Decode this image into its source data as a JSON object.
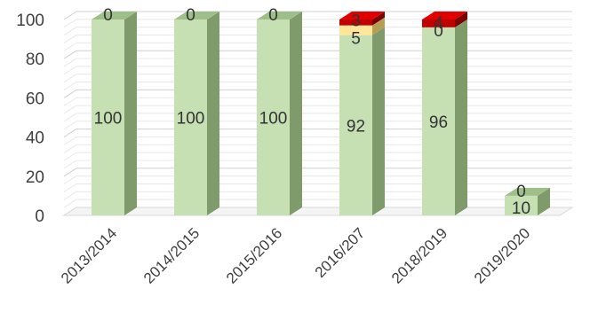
{
  "chart_data": {
    "type": "bar",
    "stacked": true,
    "three_d": true,
    "categories": [
      "2013/2014",
      "2014/2015",
      "2015/2016",
      "2016/207",
      "2018/2019",
      "2019/2020"
    ],
    "series": [
      {
        "values": [
          100,
          100,
          100,
          92,
          96,
          10
        ],
        "color": "#c6e0b4",
        "side_color": "#7f9b6b",
        "top_color": "#9fbf8a"
      },
      {
        "values": [
          0,
          0,
          0,
          5,
          0,
          0
        ],
        "color": "#ffe699",
        "side_color": "#b59f55",
        "top_color": "#e0c878"
      },
      {
        "values": [
          0,
          0,
          0,
          3,
          4,
          0
        ],
        "color": "#c00000",
        "side_color": "#7a0000",
        "top_color": "#e00000"
      }
    ],
    "data_labels": [
      [
        "100",
        "100",
        "100",
        "92",
        "96",
        "10"
      ],
      [
        "",
        "",
        "",
        "5",
        "0",
        ""
      ],
      [
        "0",
        "0",
        "0",
        "3",
        "4",
        "0"
      ]
    ],
    "y_ticks": [
      0,
      20,
      40,
      60,
      80,
      100
    ],
    "ylim": [
      0,
      100
    ],
    "grid": true,
    "legend": "none"
  }
}
